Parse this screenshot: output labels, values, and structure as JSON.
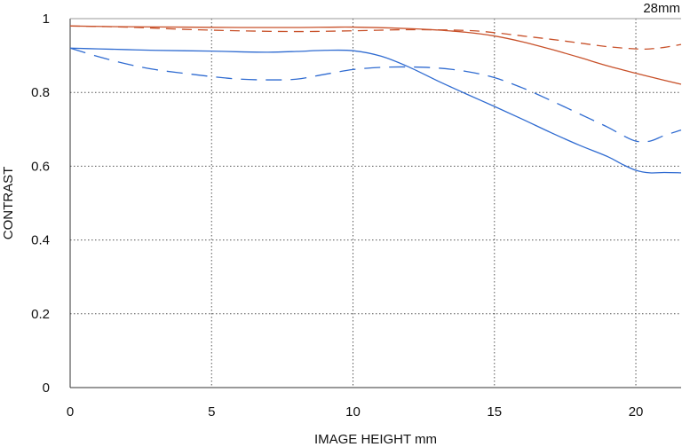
{
  "chart_data": {
    "type": "line",
    "annotation": "28mm",
    "xlabel": "IMAGE HEIGHT  mm",
    "ylabel": "CONTRAST",
    "xlim": [
      0,
      21.6
    ],
    "ylim": [
      0,
      1
    ],
    "x_ticks": [
      0,
      5,
      10,
      15,
      20
    ],
    "x_tick_labels": [
      "0",
      "5",
      "10",
      "15",
      "20"
    ],
    "y_ticks": [
      0,
      0.2,
      0.4,
      0.6,
      0.8,
      1
    ],
    "y_tick_labels": [
      "0",
      "0.2",
      "0.4",
      "0.6",
      "0.8",
      "1"
    ],
    "grid": true,
    "series": [
      {
        "color": "#c8512a",
        "dash": "solid",
        "x": [
          0,
          2,
          4,
          6,
          8,
          10,
          12,
          13,
          14,
          15,
          16,
          17,
          18,
          19,
          20,
          21,
          21.6
        ],
        "y": [
          0.98,
          0.978,
          0.977,
          0.976,
          0.976,
          0.977,
          0.973,
          0.969,
          0.963,
          0.953,
          0.937,
          0.917,
          0.895,
          0.872,
          0.852,
          0.833,
          0.822
        ]
      },
      {
        "color": "#c8512a",
        "dash": "dashed",
        "x": [
          0,
          2,
          4,
          6,
          8,
          10,
          12,
          14,
          15,
          16,
          17,
          18,
          19,
          20,
          20.5,
          21,
          21.6
        ],
        "y": [
          0.98,
          0.977,
          0.971,
          0.967,
          0.965,
          0.967,
          0.97,
          0.968,
          0.962,
          0.953,
          0.944,
          0.934,
          0.924,
          0.918,
          0.918,
          0.922,
          0.93
        ]
      },
      {
        "color": "#2f6bd1",
        "dash": "solid",
        "x": [
          0,
          1,
          2,
          3,
          4,
          5,
          6,
          7,
          8,
          9,
          10,
          11,
          12,
          13,
          14,
          15,
          16,
          17,
          18,
          19,
          19.5,
          20,
          20.5,
          21,
          21.6
        ],
        "y": [
          0.92,
          0.918,
          0.916,
          0.914,
          0.913,
          0.912,
          0.91,
          0.909,
          0.911,
          0.914,
          0.913,
          0.898,
          0.868,
          0.831,
          0.796,
          0.762,
          0.727,
          0.691,
          0.657,
          0.626,
          0.606,
          0.589,
          0.582,
          0.583,
          0.582
        ]
      },
      {
        "color": "#2f6bd1",
        "dash": "dashed",
        "x": [
          0,
          1,
          2,
          3,
          4,
          5,
          6,
          7,
          8,
          9,
          10,
          11,
          12,
          13,
          14,
          15,
          16,
          17,
          18,
          19,
          19.5,
          20,
          20.5,
          21,
          21.6
        ],
        "y": [
          0.92,
          0.897,
          0.877,
          0.862,
          0.852,
          0.843,
          0.836,
          0.834,
          0.836,
          0.849,
          0.862,
          0.868,
          0.869,
          0.866,
          0.857,
          0.84,
          0.812,
          0.778,
          0.742,
          0.706,
          0.685,
          0.668,
          0.668,
          0.683,
          0.698
        ]
      }
    ]
  }
}
